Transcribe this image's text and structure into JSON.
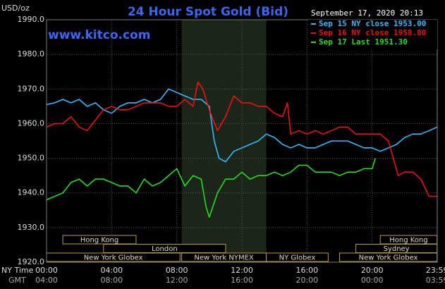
{
  "chart_data": {
    "type": "line",
    "title": "24 Hour Spot Gold (Bid)",
    "subtitle": "www.kitco.com",
    "date": "September 17, 2020 20:13",
    "ylabel": "USD/oz",
    "xlabel": "NY Time",
    "x2label": "GMT",
    "legend": "upper right",
    "grid": true,
    "xlim": [
      0,
      24
    ],
    "ylim": [
      1920,
      1990
    ],
    "yticks": [
      {
        "value": 1920,
        "label": "1920.0"
      },
      {
        "value": 1930,
        "label": "1930.0"
      },
      {
        "value": 1940,
        "label": "1940.0"
      },
      {
        "value": 1950,
        "label": "1950.0"
      },
      {
        "value": 1960,
        "label": "1960.0"
      },
      {
        "value": 1970,
        "label": "1970.0"
      },
      {
        "value": 1980,
        "label": "1980.0"
      },
      {
        "value": 1990,
        "label": "1990.0"
      }
    ],
    "xticks": [
      {
        "value": 0,
        "label": "00:00"
      },
      {
        "value": 4,
        "label": "04:00"
      },
      {
        "value": 8,
        "label": "08:00"
      },
      {
        "value": 12,
        "label": "12:00"
      },
      {
        "value": 16,
        "label": "16:00"
      },
      {
        "value": 20,
        "label": "20:00"
      },
      {
        "value": 23.983,
        "label": "23:59"
      }
    ],
    "gmt_labels": [
      "04:00",
      "08:00",
      "12:00",
      "16:00",
      "20:00",
      "00:00",
      "03:59"
    ],
    "shaded": [
      8.3,
      13.5
    ],
    "session_rows": [
      [
        {
          "name": "Hong Kong",
          "start": 1,
          "end": 5.5
        },
        {
          "name": "Hong Kong",
          "start": 20.5,
          "end": 23.983
        }
      ],
      [
        {
          "name": "London",
          "start": 3.5,
          "end": 11
        },
        {
          "name": "Sydney",
          "start": 19,
          "end": 23.983
        }
      ],
      [
        {
          "name": "New York Globex",
          "start": 0,
          "end": 8.2
        },
        {
          "name": "New York NYMEX",
          "start": 8.3,
          "end": 13.5
        },
        {
          "name": "NY Globex",
          "start": 13.5,
          "end": 17.3
        },
        {
          "name": "New York Globex",
          "start": 18,
          "end": 23.983
        }
      ]
    ],
    "series": [
      {
        "name": "Sep 15 NY close 1953.00",
        "color": "#33bbff",
        "x": [
          0,
          0.5,
          1,
          1.5,
          2,
          2.5,
          3,
          3.5,
          4,
          4.5,
          5,
          5.5,
          6,
          6.5,
          7,
          7.5,
          8,
          8.5,
          9,
          9.5,
          10,
          10.3,
          10.6,
          11,
          11.5,
          12,
          12.5,
          13,
          13.5,
          14,
          14.5,
          15,
          15.5,
          16,
          16.5,
          17,
          17.5,
          18,
          18.5,
          19,
          19.5,
          20,
          20.5,
          21,
          21.5,
          22,
          22.5,
          23,
          23.5,
          24
        ],
        "values": [
          1965.5,
          1966,
          1967,
          1966,
          1967,
          1965,
          1966,
          1964,
          1963,
          1965,
          1966,
          1966,
          1967,
          1966,
          1967,
          1970,
          1969,
          1968,
          1967,
          1967,
          1965,
          1955,
          1950,
          1949,
          1952,
          1953,
          1954,
          1955,
          1957,
          1956,
          1954,
          1953,
          1954,
          1953,
          1953,
          1954,
          1955,
          1955,
          1955,
          1954,
          1953,
          1953,
          1952,
          1953,
          1954,
          1956,
          1957,
          1957,
          1958,
          1959
        ]
      },
      {
        "name": "Sep 16 NY close 1958.80",
        "color": "#ee1111",
        "x": [
          0,
          0.5,
          1,
          1.5,
          2,
          2.5,
          3,
          3.5,
          4,
          4.5,
          5,
          5.5,
          6,
          6.5,
          7,
          7.5,
          8,
          8.5,
          9,
          9.3,
          9.6,
          10,
          10.5,
          11,
          11.5,
          12,
          12.5,
          13,
          13.5,
          14,
          14.5,
          14.8,
          15,
          15.5,
          16,
          16.5,
          17,
          17.5,
          18,
          18.5,
          19,
          19.5,
          20,
          20.5,
          21,
          21.3,
          21.6,
          22,
          22.5,
          23,
          23.5,
          24
        ],
        "values": [
          1959,
          1960,
          1960,
          1962,
          1959,
          1958,
          1961,
          1964,
          1965,
          1964,
          1964,
          1965,
          1966,
          1966,
          1966,
          1965,
          1965,
          1967,
          1965,
          1972,
          1970,
          1964,
          1958,
          1962,
          1968,
          1966,
          1966,
          1965,
          1965,
          1963,
          1962,
          1966,
          1957,
          1958,
          1957,
          1958,
          1957,
          1958,
          1959,
          1959,
          1957,
          1957,
          1957,
          1957,
          1955,
          1950,
          1945,
          1946,
          1946,
          1944,
          1939,
          1939
        ]
      },
      {
        "name": "Sep 17 Last 1951.30",
        "color": "#22dd22",
        "x": [
          0,
          0.5,
          1,
          1.5,
          2,
          2.5,
          3,
          3.5,
          4,
          4.5,
          5,
          5.5,
          6,
          6.5,
          7,
          7.5,
          8,
          8.5,
          9,
          9.5,
          9.8,
          10,
          10.5,
          11,
          11.5,
          12,
          12.5,
          13,
          13.5,
          14,
          14.5,
          15,
          15.5,
          16,
          16.5,
          17,
          17.5,
          18,
          18.5,
          19,
          19.5,
          20,
          20.2
        ],
        "values": [
          1938,
          1939,
          1940,
          1943,
          1944,
          1942,
          1944,
          1944,
          1943,
          1942,
          1942,
          1940,
          1944,
          1942,
          1943,
          1945,
          1947,
          1942,
          1945,
          1944,
          1936,
          1933,
          1940,
          1944,
          1944,
          1946,
          1944,
          1945,
          1945,
          1946,
          1945,
          1946,
          1948,
          1948,
          1946,
          1946,
          1946,
          1945,
          1946,
          1946,
          1947,
          1947,
          1950
        ]
      }
    ]
  }
}
